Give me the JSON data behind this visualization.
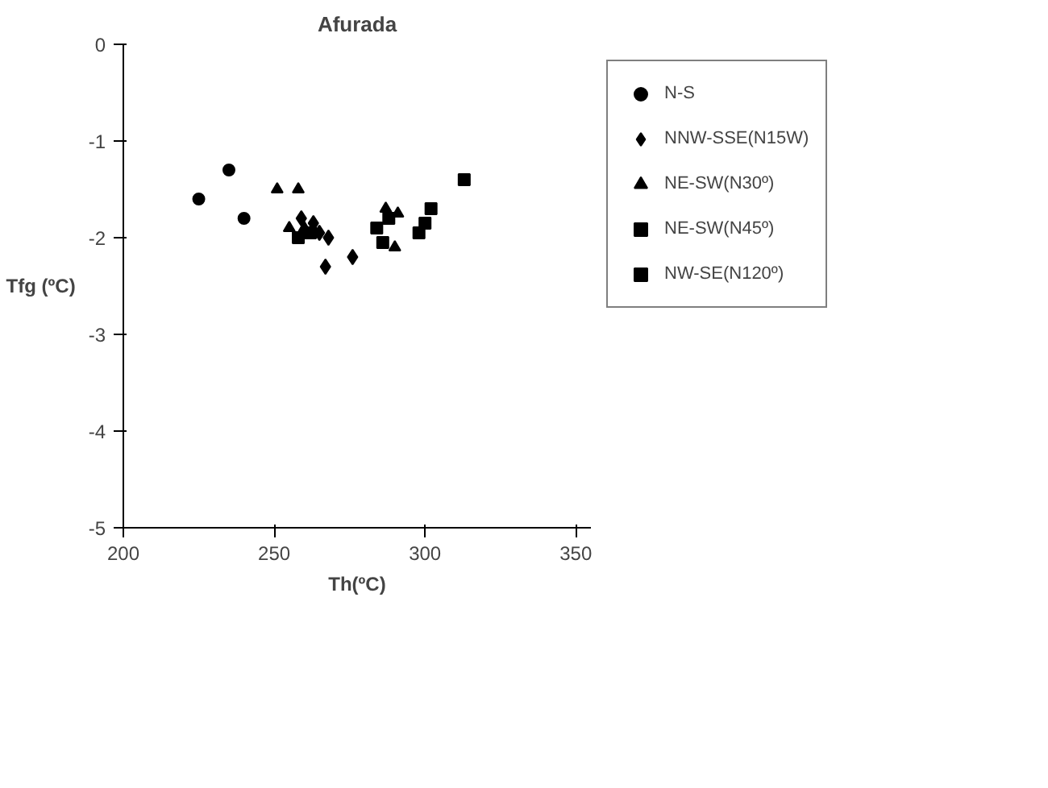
{
  "chart_data": {
    "type": "scatter",
    "title": "Afurada",
    "xlabel": "Th(ºC)",
    "ylabel": "Tfg (ºC)",
    "xlim": [
      200,
      355
    ],
    "xticks": [
      200,
      250,
      300,
      350
    ],
    "ylim": [
      -5,
      0
    ],
    "yticks": [
      -5,
      -4,
      -3,
      -2,
      -1,
      0
    ],
    "grid": false,
    "legend": "top right",
    "series": [
      {
        "name": "N-S",
        "color": "#000000",
        "marker": "circle",
        "x": [
          225,
          235,
          240
        ],
        "values": [
          -1.6,
          -1.3,
          -1.8
        ]
      },
      {
        "name": "NNW-SSE(N15W)",
        "color": "#000000",
        "marker": "diamond",
        "x": [
          259,
          262,
          263,
          265,
          268,
          267,
          276
        ],
        "values": [
          -1.8,
          null,
          -1.85,
          -1.95,
          -2.0,
          -2.3,
          -2.2
        ]
      },
      {
        "name": "NE-SW(N30º)",
        "color": "#000000",
        "marker": "triangle",
        "x": [
          251,
          258,
          255,
          260,
          287,
          291,
          290
        ],
        "values": [
          -1.5,
          -1.5,
          -1.9,
          -1.9,
          -1.7,
          -1.75,
          -2.1
        ]
      },
      {
        "name": "NE-SW(N45º)",
        "color": "#000000",
        "marker": "square",
        "x": [
          258,
          262,
          284,
          286,
          288
        ],
        "values": [
          -2.0,
          -1.95,
          -1.9,
          -2.05,
          -1.8
        ]
      },
      {
        "name": "NW-SE(N120º)",
        "color": "#000000",
        "marker": "square",
        "x": [
          298,
          300,
          302,
          313
        ],
        "values": [
          -1.95,
          -1.85,
          -1.7,
          -1.4
        ]
      }
    ]
  }
}
